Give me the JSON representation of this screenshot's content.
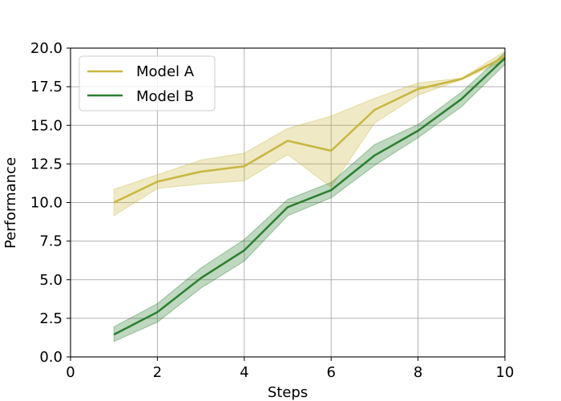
{
  "chart_data": {
    "type": "line",
    "title": "",
    "xlabel": "Steps",
    "ylabel": "Performance",
    "xlim": [
      0,
      10
    ],
    "ylim": [
      0,
      20
    ],
    "xticks": [
      0,
      2,
      4,
      6,
      8,
      10
    ],
    "yticks": [
      0.0,
      2.5,
      5.0,
      7.5,
      10.0,
      12.5,
      15.0,
      17.5,
      20.0
    ],
    "xtick_labels": [
      "0",
      "2",
      "4",
      "6",
      "8",
      "10"
    ],
    "ytick_labels": [
      "0.0",
      "2.5",
      "5.0",
      "7.5",
      "10.0",
      "12.5",
      "15.0",
      "17.5",
      "20.0"
    ],
    "grid": true,
    "legend_position": "top-left",
    "x": [
      1,
      2,
      3,
      4,
      5,
      6,
      7,
      8,
      9,
      10
    ],
    "series": [
      {
        "name": "Model A",
        "color": "#c9b640",
        "values": [
          10.0,
          11.35,
          12.0,
          12.35,
          14.0,
          13.35,
          16.0,
          17.35,
          18.0,
          19.45
        ],
        "lower": [
          9.15,
          10.9,
          11.2,
          11.4,
          13.1,
          11.0,
          15.15,
          16.95,
          17.95,
          19.2
        ],
        "upper": [
          10.85,
          11.8,
          12.75,
          13.2,
          14.8,
          15.6,
          16.75,
          17.75,
          18.05,
          19.8
        ]
      },
      {
        "name": "Model B",
        "color": "#2a7f2e",
        "values": [
          1.45,
          2.9,
          5.1,
          6.9,
          9.7,
          10.8,
          13.05,
          14.65,
          16.7,
          19.35
        ],
        "lower": [
          1.0,
          2.25,
          4.45,
          6.2,
          9.15,
          10.3,
          12.4,
          14.2,
          16.2,
          18.95
        ],
        "upper": [
          1.95,
          3.45,
          5.75,
          7.6,
          10.2,
          11.3,
          13.75,
          15.05,
          17.15,
          19.7
        ]
      }
    ]
  }
}
